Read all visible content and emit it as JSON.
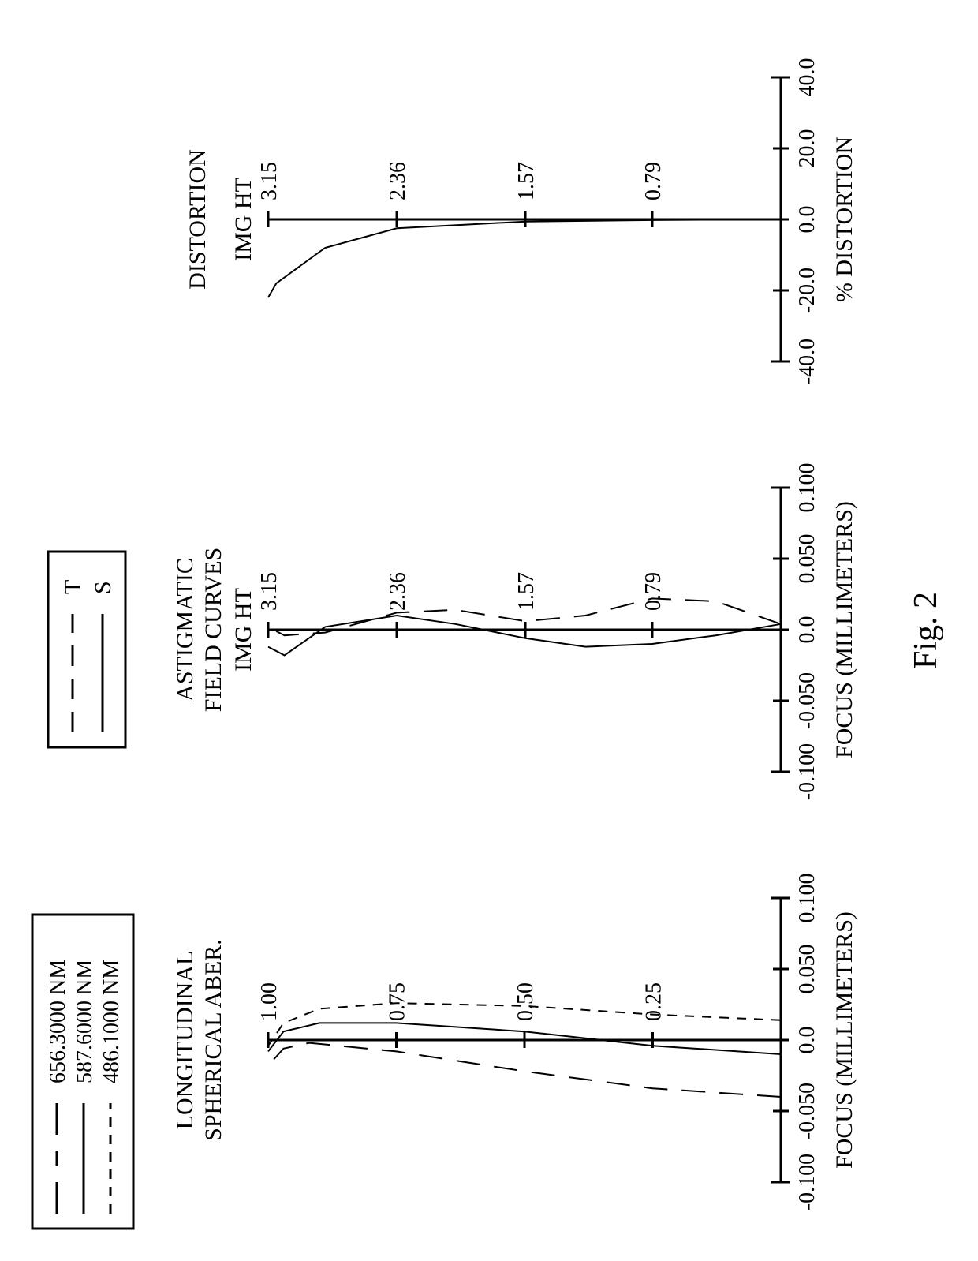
{
  "figure_label": "Fig. 2",
  "wavelength_legend": {
    "w1": "656.3000 NM",
    "w2": "587.6000 NM",
    "w3": "486.1000 NM"
  },
  "ts_legend": {
    "t": "T",
    "s": "S"
  },
  "panels": {
    "spherical": {
      "title1": "LONGITUDINAL",
      "title2": "SPHERICAL  ABER.",
      "ylabel": "",
      "xlabel": "FOCUS (MILLIMETERS)",
      "yticks": [
        "1.00",
        "0.75",
        "0.50",
        "0.25"
      ],
      "xticks": [
        "-0.100",
        "-0.050",
        "0.0",
        "0.050",
        "0.100"
      ],
      "xrange": [
        -0.1,
        0.1
      ],
      "yrange": [
        0,
        1.0
      ],
      "curves": {
        "656": {
          "style": "longdash",
          "stroke": "#000",
          "width": 2,
          "points": [
            [
              -0.04,
              0.0
            ],
            [
              -0.034,
              0.25
            ],
            [
              -0.022,
              0.5
            ],
            [
              -0.008,
              0.75
            ],
            [
              -0.002,
              0.92
            ],
            [
              -0.006,
              0.97
            ],
            [
              -0.018,
              1.0
            ]
          ]
        },
        "587": {
          "style": "solid",
          "stroke": "#000",
          "width": 2,
          "points": [
            [
              -0.01,
              0.0
            ],
            [
              -0.004,
              0.25
            ],
            [
              0.006,
              0.5
            ],
            [
              0.012,
              0.75
            ],
            [
              0.012,
              0.9
            ],
            [
              0.006,
              0.97
            ],
            [
              -0.008,
              1.0
            ]
          ]
        },
        "486": {
          "style": "shortdash",
          "stroke": "#000",
          "width": 2,
          "points": [
            [
              0.014,
              0.0
            ],
            [
              0.018,
              0.25
            ],
            [
              0.024,
              0.5
            ],
            [
              0.026,
              0.75
            ],
            [
              0.022,
              0.9
            ],
            [
              0.012,
              0.97
            ],
            [
              -0.004,
              1.0
            ]
          ]
        }
      }
    },
    "astigmatic": {
      "title1": "ASTIGMATIC",
      "title2": "FIELD  CURVES",
      "header": "IMG HT",
      "xlabel": "FOCUS (MILLIMETERS)",
      "yticks": [
        "3.15",
        "2.36",
        "1.57",
        "0.79"
      ],
      "xticks": [
        "-0.100",
        "-0.050",
        "0.0",
        "0.050",
        "0.100"
      ],
      "xrange": [
        -0.1,
        0.1
      ],
      "yrange": [
        0,
        3.15
      ],
      "curves": {
        "T": {
          "style": "longdash",
          "stroke": "#000",
          "width": 2,
          "points": [
            [
              0.004,
              0.0
            ],
            [
              0.02,
              0.4
            ],
            [
              0.022,
              0.79
            ],
            [
              0.01,
              1.2
            ],
            [
              0.006,
              1.57
            ],
            [
              0.014,
              2.0
            ],
            [
              0.012,
              2.36
            ],
            [
              -0.002,
              2.8
            ],
            [
              -0.004,
              3.05
            ],
            [
              0.002,
              3.15
            ]
          ]
        },
        "S": {
          "style": "solid",
          "stroke": "#000",
          "width": 2,
          "points": [
            [
              0.004,
              0.0
            ],
            [
              -0.004,
              0.4
            ],
            [
              -0.01,
              0.79
            ],
            [
              -0.012,
              1.2
            ],
            [
              -0.006,
              1.57
            ],
            [
              0.004,
              2.0
            ],
            [
              0.01,
              2.36
            ],
            [
              0.002,
              2.8
            ],
            [
              -0.018,
              3.05
            ],
            [
              -0.012,
              3.15
            ]
          ]
        }
      }
    },
    "distortion": {
      "title": "DISTORTION",
      "header": "IMG HT",
      "xlabel": "% DISTORTION",
      "yticks": [
        "3.15",
        "2.36",
        "1.57",
        "0.79"
      ],
      "xticks": [
        "-40.0",
        "-20.0",
        "0.0",
        "20.0",
        "40.0"
      ],
      "xrange": [
        -40,
        40
      ],
      "yrange": [
        0,
        3.15
      ],
      "curve": {
        "style": "solid",
        "stroke": "#000",
        "width": 2,
        "points": [
          [
            0.0,
            0.0
          ],
          [
            -0.2,
            0.79
          ],
          [
            -0.6,
            1.57
          ],
          [
            -2.5,
            2.36
          ],
          [
            -8.0,
            2.8
          ],
          [
            -18.0,
            3.1
          ],
          [
            -22.0,
            3.15
          ]
        ]
      }
    }
  },
  "layout": {
    "stroke": "#000",
    "text_color": "#000",
    "title_fontsize": 30,
    "tick_fontsize": 28,
    "axis_label_fontsize": 30,
    "legend_fontsize": 28,
    "fig_fontsize": 42,
    "axis_stroke_width": 3,
    "tick_len": 10
  }
}
